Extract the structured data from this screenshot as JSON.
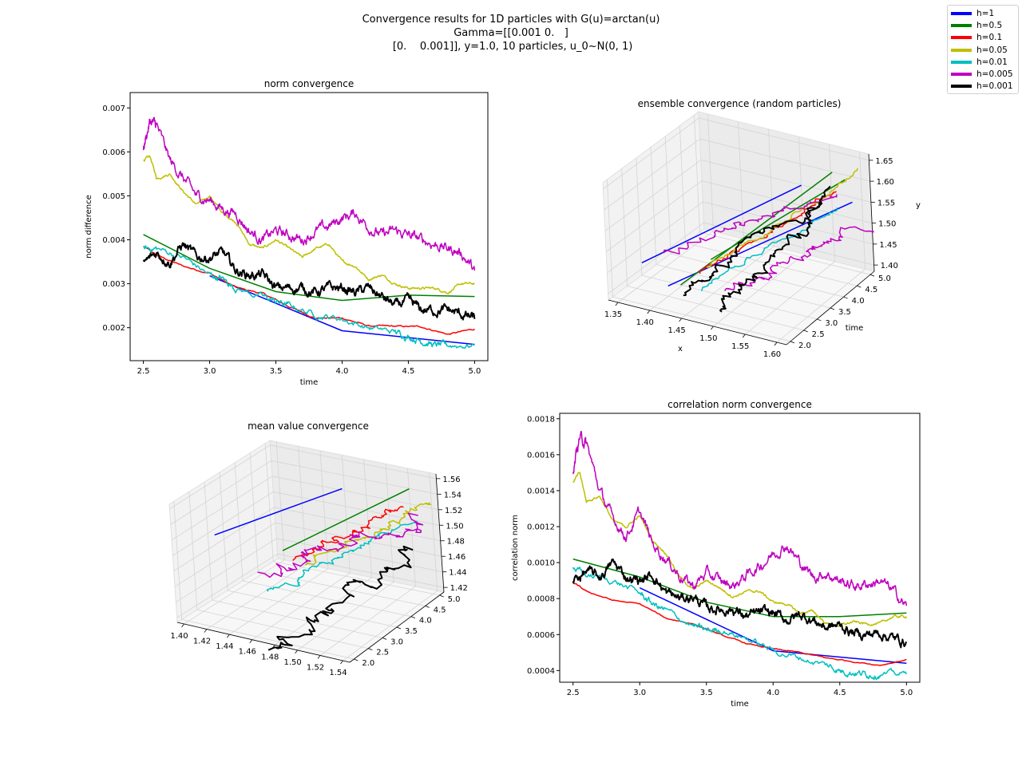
{
  "figure": {
    "suptitle_lines": [
      "Convergence results for 1D particles with G(u)=arctan(u)",
      "Gamma=[[0.001 0.   ]",
      " [0.    0.001]], y=1.0, 10 particles, u_0~N(0, 1)"
    ],
    "legend": [
      {
        "label": "h=1",
        "color": "#0000ff"
      },
      {
        "label": "h=0.5",
        "color": "#008000"
      },
      {
        "label": "h=0.1",
        "color": "#ff0000"
      },
      {
        "label": "h=0.05",
        "color": "#bfbf00"
      },
      {
        "label": "h=0.01",
        "color": "#00bfbf"
      },
      {
        "label": "h=0.005",
        "color": "#bf00bf"
      },
      {
        "label": "h=0.001",
        "color": "#000000"
      }
    ]
  },
  "chart_data": [
    {
      "type": "line",
      "title": "norm convergence",
      "xlabel": "time",
      "ylabel": "norm difference",
      "xlim": [
        2.4,
        5.1
      ],
      "ylim": [
        0.00125,
        0.00735
      ],
      "xticks": [
        "2.5",
        "3.0",
        "3.5",
        "4.0",
        "4.5",
        "5.0"
      ],
      "yticks": [
        "0.002",
        "0.003",
        "0.004",
        "0.005",
        "0.006",
        "0.007"
      ],
      "series": [
        {
          "name": "h=1",
          "color": "#0000ff",
          "noise": 0,
          "x": [
            3.0,
            4.0,
            5.0
          ],
          "y": [
            0.00318,
            0.00193,
            0.00162
          ]
        },
        {
          "name": "h=0.5",
          "color": "#008000",
          "noise": 0,
          "x": [
            2.5,
            3.0,
            3.5,
            4.0,
            4.5,
            5.0
          ],
          "y": [
            0.00412,
            0.00335,
            0.00282,
            0.00262,
            0.00274,
            0.00271
          ]
        },
        {
          "name": "h=0.1",
          "color": "#ff0000",
          "noise": 0.2,
          "x": [
            2.5,
            2.6,
            2.8,
            3.0,
            3.2,
            3.4,
            3.6,
            3.8,
            4.0,
            4.2,
            4.4,
            4.6,
            4.8,
            5.0
          ],
          "y": [
            0.00385,
            0.00365,
            0.0034,
            0.00324,
            0.00291,
            0.00278,
            0.00248,
            0.00222,
            0.00222,
            0.00204,
            0.00203,
            0.00202,
            0.00185,
            0.00197
          ]
        },
        {
          "name": "h=0.05",
          "color": "#bfbf00",
          "noise": 0.3,
          "x": [
            2.5,
            2.55,
            2.6,
            2.7,
            2.8,
            2.9,
            3.0,
            3.1,
            3.2,
            3.3,
            3.4,
            3.5,
            3.6,
            3.7,
            3.8,
            3.9,
            4.0,
            4.1,
            4.2,
            4.3,
            4.4,
            4.5,
            4.6,
            4.7,
            4.8,
            4.9,
            5.0
          ],
          "y": [
            0.0058,
            0.0059,
            0.0054,
            0.0055,
            0.0051,
            0.0048,
            0.005,
            0.0046,
            0.0044,
            0.0039,
            0.0038,
            0.004,
            0.0038,
            0.0036,
            0.0038,
            0.0039,
            0.0035,
            0.0034,
            0.0031,
            0.0032,
            0.003,
            0.0029,
            0.0029,
            0.0029,
            0.0028,
            0.003,
            0.003
          ]
        },
        {
          "name": "h=0.01",
          "color": "#00bfbf",
          "noise": 0.8,
          "x": [
            2.5,
            2.6,
            2.8,
            3.0,
            3.1,
            3.2,
            3.4,
            3.5,
            3.6,
            3.8,
            4.0,
            4.2,
            4.4,
            4.5,
            4.6,
            4.7,
            4.8,
            5.0
          ],
          "y": [
            0.0038,
            0.0038,
            0.0036,
            0.0032,
            0.0031,
            0.0029,
            0.0027,
            0.0026,
            0.0025,
            0.0023,
            0.0022,
            0.002,
            0.0019,
            0.0018,
            0.0017,
            0.0016,
            0.0016,
            0.0016
          ]
        },
        {
          "name": "h=0.005",
          "color": "#bf00bf",
          "noise": 1.3,
          "x": [
            2.5,
            2.55,
            2.6,
            2.7,
            2.8,
            2.9,
            3.0,
            3.1,
            3.2,
            3.3,
            3.4,
            3.5,
            3.6,
            3.7,
            3.8,
            3.9,
            4.0,
            4.1,
            4.2,
            4.3,
            4.4,
            4.5,
            4.6,
            4.7,
            4.8,
            4.9,
            5.0
          ],
          "y": [
            0.0061,
            0.0067,
            0.0066,
            0.0058,
            0.0054,
            0.005,
            0.0049,
            0.0047,
            0.0046,
            0.0042,
            0.004,
            0.0042,
            0.0041,
            0.004,
            0.0042,
            0.0043,
            0.0045,
            0.0046,
            0.0043,
            0.0041,
            0.0042,
            0.0041,
            0.004,
            0.0039,
            0.0038,
            0.0037,
            0.0033
          ]
        },
        {
          "name": "h=0.001",
          "color": "#000000",
          "noise": 1.2,
          "x": [
            2.5,
            2.6,
            2.7,
            2.8,
            2.9,
            3.0,
            3.1,
            3.2,
            3.3,
            3.4,
            3.5,
            3.6,
            3.7,
            3.8,
            3.9,
            4.0,
            4.1,
            4.2,
            4.3,
            4.4,
            4.5,
            4.6,
            4.7,
            4.8,
            4.9,
            5.0
          ],
          "y": [
            0.00345,
            0.0037,
            0.0035,
            0.0039,
            0.0036,
            0.0036,
            0.0037,
            0.0033,
            0.0032,
            0.0032,
            0.0029,
            0.0029,
            0.0029,
            0.0028,
            0.0029,
            0.0029,
            0.0028,
            0.0029,
            0.0027,
            0.0025,
            0.0026,
            0.0024,
            0.0024,
            0.0024,
            0.0023,
            0.0022
          ]
        }
      ]
    },
    {
      "type": "line3d",
      "title": "ensemble convergence (random particles)",
      "xlabel": "x",
      "ylabel": "time",
      "zlabel": "y",
      "xticks": [
        "1.35",
        "1.40",
        "1.45",
        "1.50",
        "1.55",
        "1.60"
      ],
      "yticks": [
        "2.0",
        "2.5",
        "3.0",
        "3.5",
        "4.0",
        "4.5",
        "5.0"
      ],
      "zticks": [
        "1.40",
        "1.45",
        "1.50",
        "1.55",
        "1.60",
        "1.65"
      ],
      "trajectories": [
        {
          "series": "h=1",
          "color": "#0000ff",
          "x": [
            1.36,
            1.5
          ],
          "t": [
            2.5,
            5.0
          ],
          "y": [
            1.45,
            1.56
          ]
        },
        {
          "series": "h=1",
          "color": "#0000ff",
          "x": [
            1.4,
            1.58
          ],
          "t": [
            2.5,
            5.0
          ],
          "y": [
            1.41,
            1.55
          ]
        },
        {
          "series": "h=0.5",
          "color": "#008000",
          "x": [
            1.42,
            1.55
          ],
          "t": [
            2.5,
            5.0
          ],
          "y": [
            1.42,
            1.61
          ]
        },
        {
          "series": "h=0.5",
          "color": "#008000",
          "x": [
            1.47,
            1.57
          ],
          "t": [
            2.5,
            5.0
          ],
          "y": [
            1.5,
            1.6
          ]
        },
        {
          "series": "h=0.1",
          "color": "#ff0000",
          "x": [
            1.45,
            1.56
          ],
          "t": [
            2.5,
            5.0
          ],
          "y": [
            1.46,
            1.57
          ]
        },
        {
          "series": "h=0.05",
          "color": "#bfbf00",
          "x": [
            1.46,
            1.6
          ],
          "t": [
            2.5,
            5.0
          ],
          "y": [
            1.48,
            1.63
          ]
        },
        {
          "series": "h=0.01",
          "color": "#00bfbf",
          "x": [
            1.45,
            1.56
          ],
          "t": [
            2.5,
            5.0
          ],
          "y": [
            1.42,
            1.53
          ]
        },
        {
          "series": "h=0.005",
          "color": "#bf00bf",
          "x": [
            1.4,
            1.55
          ],
          "t": [
            2.5,
            5.0
          ],
          "y": [
            1.49,
            1.56
          ]
        },
        {
          "series": "h=0.005",
          "color": "#bf00bf",
          "x": [
            1.49,
            1.6
          ],
          "t": [
            2.5,
            5.0
          ],
          "y": [
            1.43,
            1.5
          ]
        },
        {
          "series": "h=0.001",
          "color": "#000000",
          "x": [
            1.42,
            1.55
          ],
          "t": [
            2.5,
            5.0
          ],
          "y": [
            1.4,
            1.56
          ]
        },
        {
          "series": "h=0.001",
          "color": "#000000",
          "x": [
            1.48,
            1.53
          ],
          "t": [
            2.5,
            5.0
          ],
          "y": [
            1.38,
            1.52
          ]
        }
      ]
    },
    {
      "type": "line3d",
      "title": "mean value convergence",
      "xticks": [
        "1.40",
        "1.42",
        "1.44",
        "1.46",
        "1.48",
        "1.50",
        "1.52",
        "1.54"
      ],
      "yticks": [
        "2.0",
        "2.5",
        "3.0",
        "3.5",
        "4.0",
        "4.5",
        "5.0"
      ],
      "zticks": [
        "1.42",
        "1.44",
        "1.46",
        "1.48",
        "1.50",
        "1.52",
        "1.54",
        "1.56"
      ],
      "trajectories": [
        {
          "series": "h=1",
          "color": "#0000ff",
          "x": [
            1.4,
            1.46
          ],
          "t": [
            3.0,
            5.0
          ],
          "y": [
            1.5,
            1.53
          ]
        },
        {
          "series": "h=0.5",
          "color": "#008000",
          "x": [
            1.46,
            1.52
          ],
          "t": [
            3.0,
            5.0
          ],
          "y": [
            1.5,
            1.55
          ]
        },
        {
          "series": "h=0.1",
          "color": "#ff0000",
          "x": [
            1.47,
            1.52
          ],
          "t": [
            3.0,
            5.0
          ],
          "y": [
            1.49,
            1.53
          ]
        },
        {
          "series": "h=0.05",
          "color": "#bfbf00",
          "x": [
            1.48,
            1.54
          ],
          "t": [
            3.0,
            5.0
          ],
          "y": [
            1.49,
            1.54
          ]
        },
        {
          "series": "h=0.01",
          "color": "#00bfbf",
          "x": [
            1.46,
            1.52
          ],
          "t": [
            2.5,
            5.0
          ],
          "y": [
            1.46,
            1.51
          ]
        },
        {
          "series": "h=0.005",
          "color": "#bf00bf",
          "x": [
            1.45,
            1.53
          ],
          "t": [
            2.5,
            5.0
          ],
          "y": [
            1.48,
            1.52
          ]
        },
        {
          "series": "h=0.001",
          "color": "#000000",
          "x": [
            1.47,
            1.52
          ],
          "t": [
            2.0,
            5.0
          ],
          "y": [
            1.4,
            1.47
          ]
        }
      ]
    },
    {
      "type": "line",
      "title": "correlation norm convergence",
      "xlabel": "time",
      "ylabel": "correlation norm",
      "xlim": [
        2.4,
        5.1
      ],
      "ylim": [
        0.000335,
        0.00183
      ],
      "xticks": [
        "2.5",
        "3.0",
        "3.5",
        "4.0",
        "4.5",
        "5.0"
      ],
      "yticks": [
        "0.0004",
        "0.0006",
        "0.0008",
        "0.0010",
        "0.0012",
        "0.0014",
        "0.0016",
        "0.0018"
      ],
      "series": [
        {
          "name": "h=1",
          "color": "#0000ff",
          "noise": 0,
          "x": [
            3.0,
            4.0,
            5.0
          ],
          "y": [
            0.00086,
            0.00051,
            0.00044
          ]
        },
        {
          "name": "h=0.5",
          "color": "#008000",
          "noise": 0,
          "x": [
            2.5,
            3.0,
            3.5,
            4.0,
            4.5,
            5.0
          ],
          "y": [
            0.00102,
            0.00092,
            0.00078,
            0.0007,
            0.0007,
            0.00072
          ]
        },
        {
          "name": "h=0.1",
          "color": "#ff0000",
          "noise": 0.15,
          "x": [
            2.5,
            2.6,
            2.8,
            3.0,
            3.2,
            3.4,
            3.6,
            3.8,
            4.0,
            4.2,
            4.4,
            4.6,
            4.8,
            5.0
          ],
          "y": [
            0.00089,
            0.00084,
            0.00079,
            0.00077,
            0.00069,
            0.00066,
            0.0006,
            0.00055,
            0.00052,
            0.0005,
            0.00047,
            0.00045,
            0.00043,
            0.00046
          ]
        },
        {
          "name": "h=0.05",
          "color": "#bfbf00",
          "noise": 0.3,
          "x": [
            2.5,
            2.55,
            2.6,
            2.7,
            2.8,
            2.9,
            3.0,
            3.1,
            3.2,
            3.3,
            3.4,
            3.5,
            3.6,
            3.7,
            3.8,
            3.9,
            4.0,
            4.1,
            4.2,
            4.3,
            4.4,
            4.5,
            4.6,
            4.7,
            4.8,
            4.9,
            5.0
          ],
          "y": [
            0.00145,
            0.0015,
            0.00134,
            0.00137,
            0.00123,
            0.0012,
            0.00126,
            0.00112,
            0.00105,
            0.00092,
            0.00085,
            0.0009,
            0.00086,
            0.00081,
            0.00084,
            0.00084,
            0.00078,
            0.00077,
            0.00072,
            0.00073,
            0.00066,
            0.00065,
            0.00067,
            0.00066,
            0.00066,
            0.0007,
            0.0007
          ]
        },
        {
          "name": "h=0.01",
          "color": "#00bfbf",
          "noise": 0.8,
          "x": [
            2.5,
            2.6,
            2.8,
            3.0,
            3.1,
            3.2,
            3.4,
            3.5,
            3.6,
            3.8,
            4.0,
            4.2,
            4.4,
            4.5,
            4.6,
            4.7,
            4.8,
            5.0
          ],
          "y": [
            0.00097,
            0.00093,
            0.0009,
            0.00083,
            0.00077,
            0.00073,
            0.00065,
            0.00062,
            0.00063,
            0.00058,
            0.00051,
            0.00047,
            0.00043,
            0.0004,
            0.00039,
            0.00038,
            0.00038,
            0.00038
          ]
        },
        {
          "name": "h=0.005",
          "color": "#bf00bf",
          "noise": 1.3,
          "x": [
            2.5,
            2.55,
            2.6,
            2.7,
            2.8,
            2.9,
            3.0,
            3.1,
            3.2,
            3.3,
            3.4,
            3.5,
            3.6,
            3.7,
            3.8,
            3.9,
            4.0,
            4.1,
            4.2,
            4.3,
            4.4,
            4.5,
            4.6,
            4.7,
            4.8,
            4.9,
            5.0
          ],
          "y": [
            0.00152,
            0.0017,
            0.00166,
            0.0014,
            0.00124,
            0.00115,
            0.00128,
            0.0011,
            0.00102,
            0.00093,
            0.00087,
            0.00094,
            0.0009,
            0.00087,
            0.00093,
            0.00098,
            0.00105,
            0.0011,
            0.001,
            0.00092,
            0.00094,
            0.0009,
            0.00087,
            0.00088,
            0.0009,
            0.00084,
            0.00076
          ]
        },
        {
          "name": "h=0.001",
          "color": "#000000",
          "noise": 1.2,
          "x": [
            2.5,
            2.6,
            2.7,
            2.8,
            2.9,
            3.0,
            3.1,
            3.2,
            3.3,
            3.4,
            3.5,
            3.6,
            3.7,
            3.8,
            3.9,
            4.0,
            4.1,
            4.2,
            4.3,
            4.4,
            4.5,
            4.6,
            4.7,
            4.8,
            4.9,
            5.0
          ],
          "y": [
            0.0009,
            0.00095,
            0.00092,
            0.001,
            0.00092,
            0.0009,
            0.00093,
            0.00083,
            0.0008,
            0.00081,
            0.00075,
            0.00074,
            0.00074,
            0.0007,
            0.00072,
            0.00072,
            0.00068,
            0.00071,
            0.00068,
            0.00064,
            0.00065,
            0.00061,
            0.0006,
            0.00061,
            0.00058,
            0.00056
          ]
        }
      ]
    }
  ]
}
